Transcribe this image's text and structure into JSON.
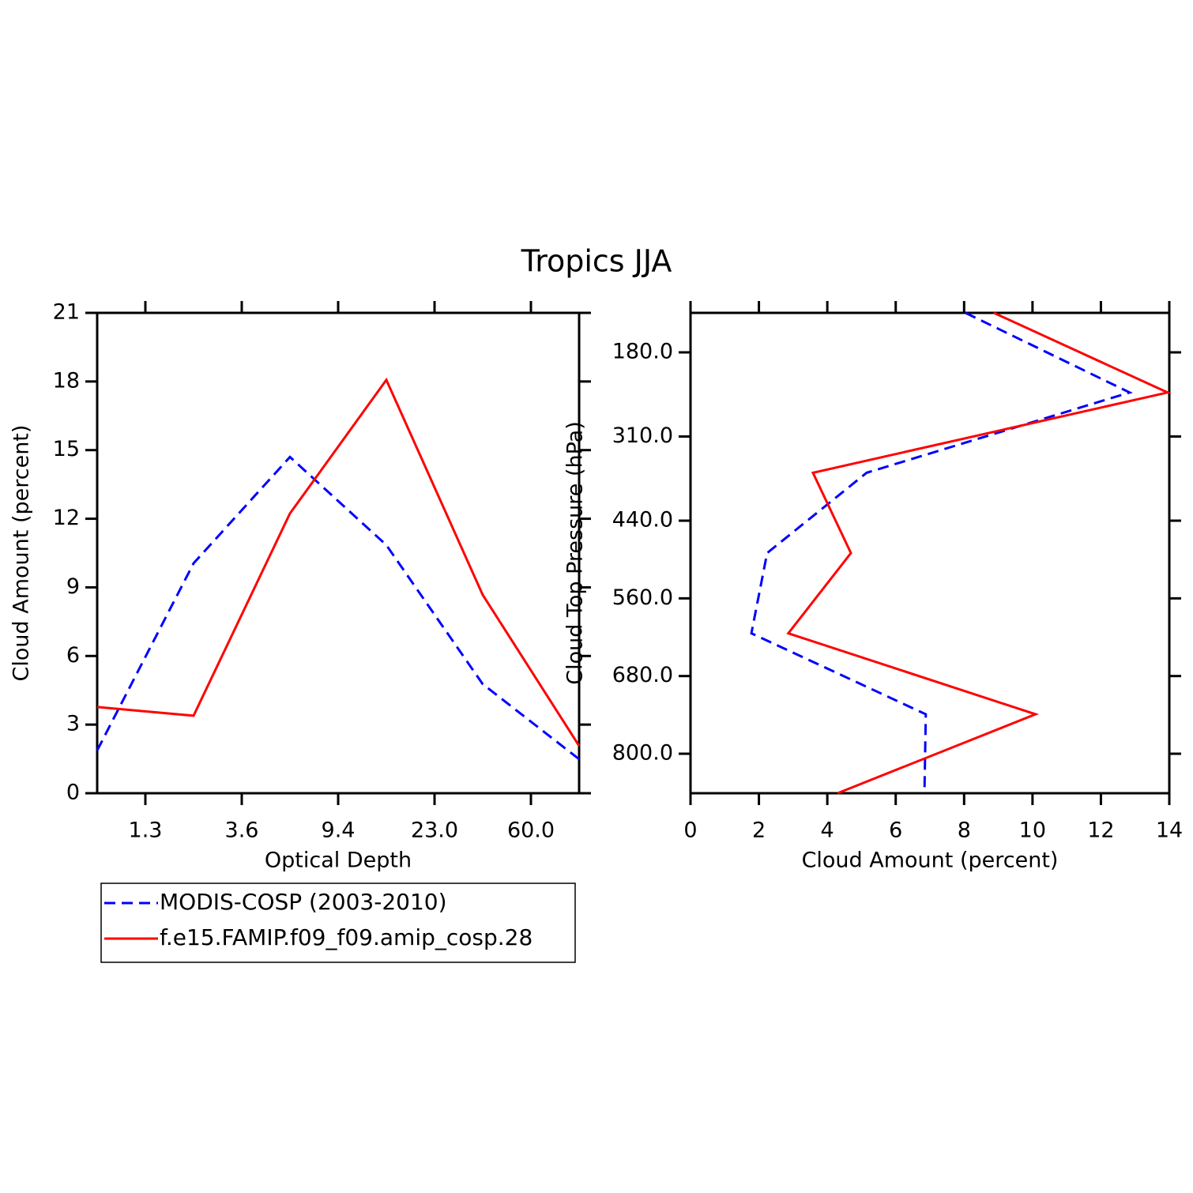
{
  "chart_data": [
    {
      "type": "line",
      "title": "Tropics JJA",
      "xlabel": "Optical Depth",
      "ylabel": "Cloud Amount (percent)",
      "x": [
        0,
        1,
        2,
        3,
        4,
        5
      ],
      "xlim": [
        0,
        5
      ],
      "xticks": [
        {
          "value": 0.5,
          "label": "1.3"
        },
        {
          "value": 1.5,
          "label": "3.6"
        },
        {
          "value": 2.5,
          "label": "9.4"
        },
        {
          "value": 3.5,
          "label": "23.0"
        },
        {
          "value": 4.5,
          "label": "60.0"
        }
      ],
      "ylim": [
        0,
        21
      ],
      "yticks": [
        0,
        3,
        6,
        9,
        12,
        15,
        18,
        21
      ],
      "legend": "bottom-left",
      "series": [
        {
          "name": "MODIS-COSP (2003-2010)",
          "color": "#0000ff",
          "dash": true,
          "values": [
            1.87,
            10.05,
            14.7,
            10.85,
            4.77,
            1.49
          ]
        },
        {
          "name": "f.e15.FAMIP.f09_f09.amip_cosp.28",
          "color": "#ff0000",
          "dash": false,
          "values": [
            3.77,
            3.39,
            12.23,
            18.07,
            8.67,
            2.07
          ]
        }
      ]
    },
    {
      "type": "line",
      "orientation": "horizontal",
      "xlabel": "Cloud Amount (percent)",
      "ylabel": "Cloud Top Pressure (hPa)",
      "y": [
        119,
        242,
        366,
        490,
        614,
        739,
        861
      ],
      "ylim": [
        861,
        119
      ],
      "yticks": [
        {
          "value": 180,
          "label": "180.0"
        },
        {
          "value": 310,
          "label": "310.0"
        },
        {
          "value": 440,
          "label": "440.0"
        },
        {
          "value": 560,
          "label": "560.0"
        },
        {
          "value": 680,
          "label": "680.0"
        },
        {
          "value": 800,
          "label": "800.0"
        }
      ],
      "xlim": [
        0,
        14
      ],
      "xticks": [
        0,
        2,
        4,
        6,
        8,
        10,
        12,
        14
      ],
      "series": [
        {
          "color": "#0000ff",
          "dash": true,
          "values": [
            8.04,
            12.84,
            5.15,
            2.24,
            1.78,
            6.88,
            6.84
          ]
        },
        {
          "color": "#ff0000",
          "dash": false,
          "values": [
            8.87,
            13.95,
            3.58,
            4.69,
            2.86,
            10.09,
            4.3
          ]
        }
      ]
    }
  ]
}
